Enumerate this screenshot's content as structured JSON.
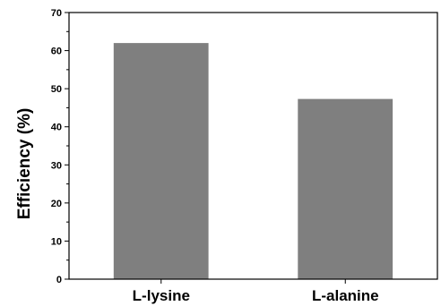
{
  "chart_data": {
    "type": "bar",
    "title": "",
    "xlabel": "",
    "ylabel": "Efficiency (%)",
    "categories": [
      "L-lysine",
      "L-alanine"
    ],
    "values": [
      62,
      47.3
    ],
    "ylim": [
      0,
      70
    ],
    "yticks": [
      0,
      10,
      20,
      30,
      40,
      50,
      60,
      70
    ],
    "bar_color": "#7f7f7f",
    "grid": false,
    "legend": "none"
  }
}
